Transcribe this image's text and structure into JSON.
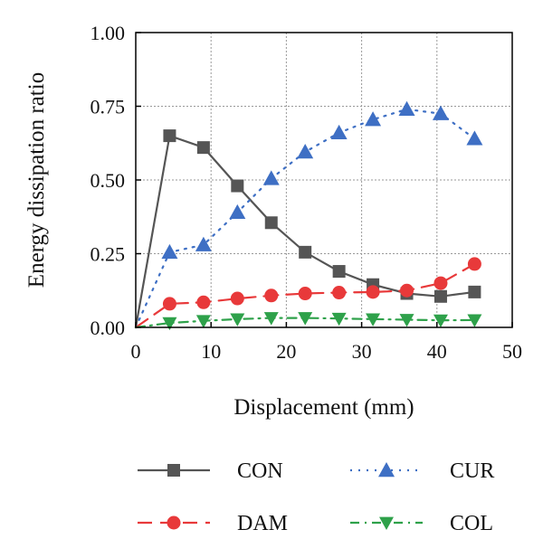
{
  "chart_data": {
    "type": "line",
    "title": "",
    "xlabel": "Displacement (mm)",
    "ylabel": "Energy dissipation ratio",
    "xlim": [
      0,
      50
    ],
    "ylim": [
      0,
      1
    ],
    "xticks": [
      "0",
      "10",
      "20",
      "30",
      "40",
      "50"
    ],
    "yticks": [
      "0.00",
      "0.25",
      "0.50",
      "0.75",
      "1.00"
    ],
    "grid": "dotted",
    "legend_position": "bottom",
    "series": [
      {
        "name": "CON",
        "color": "#555555",
        "marker": "square",
        "line_style": "solid",
        "x": [
          0,
          4.5,
          9,
          13.5,
          18,
          22.5,
          27,
          31.5,
          36,
          40.5,
          45
        ],
        "y": [
          0,
          0.65,
          0.61,
          0.48,
          0.355,
          0.255,
          0.19,
          0.145,
          0.115,
          0.105,
          0.12
        ]
      },
      {
        "name": "CUR",
        "color": "#3e6fc4",
        "marker": "triangle-up",
        "line_style": "dotted",
        "x": [
          0,
          4.5,
          9,
          13.5,
          18,
          22.5,
          27,
          31.5,
          36,
          40.5,
          45
        ],
        "y": [
          0,
          0.255,
          0.28,
          0.39,
          0.505,
          0.595,
          0.66,
          0.705,
          0.74,
          0.725,
          0.64
        ]
      },
      {
        "name": "DAM",
        "color": "#e8393a",
        "marker": "circle",
        "line_style": "dashed",
        "x": [
          0,
          4.5,
          9,
          13.5,
          18,
          22.5,
          27,
          31.5,
          36,
          40.5,
          45
        ],
        "y": [
          0,
          0.08,
          0.085,
          0.098,
          0.108,
          0.115,
          0.118,
          0.12,
          0.125,
          0.15,
          0.215
        ]
      },
      {
        "name": "COL",
        "color": "#2ea14a",
        "marker": "triangle-down",
        "line_style": "dashdot",
        "x": [
          0,
          4.5,
          9,
          13.5,
          18,
          22.5,
          27,
          31.5,
          36,
          40.5,
          45
        ],
        "y": [
          0,
          0.015,
          0.022,
          0.028,
          0.032,
          0.032,
          0.03,
          0.028,
          0.026,
          0.024,
          0.025
        ]
      }
    ],
    "legend": [
      {
        "label": "CON"
      },
      {
        "label": "CUR"
      },
      {
        "label": "DAM"
      },
      {
        "label": "COL"
      }
    ]
  }
}
